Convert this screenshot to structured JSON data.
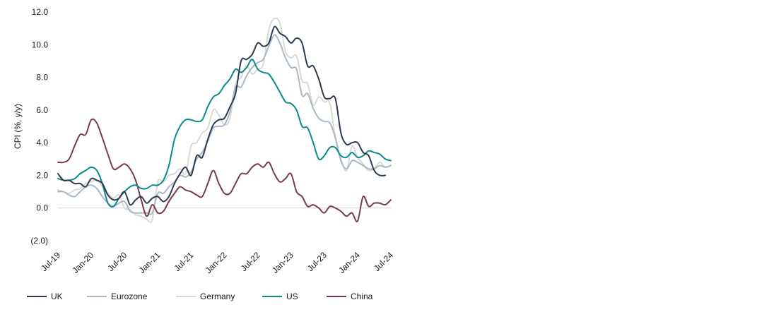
{
  "chart_data": {
    "type": "line",
    "title": "",
    "xlabel": "",
    "ylabel": "CPI (%, y/y)",
    "ylim": [
      -2.0,
      12.0
    ],
    "yticks": [
      "(2.0)",
      "0.0",
      "2.0",
      "4.0",
      "6.0",
      "8.0",
      "10.0",
      "12.0"
    ],
    "ytick_values": [
      -2,
      0,
      2,
      4,
      6,
      8,
      10,
      12
    ],
    "x_start": "Jul-19",
    "x": [
      "Jul-19",
      "Aug-19",
      "Sep-19",
      "Oct-19",
      "Nov-19",
      "Dec-19",
      "Jan-20",
      "Feb-20",
      "Mar-20",
      "Apr-20",
      "May-20",
      "Jun-20",
      "Jul-20",
      "Aug-20",
      "Sep-20",
      "Oct-20",
      "Nov-20",
      "Dec-20",
      "Jan-21",
      "Feb-21",
      "Mar-21",
      "Apr-21",
      "May-21",
      "Jun-21",
      "Jul-21",
      "Aug-21",
      "Sep-21",
      "Oct-21",
      "Nov-21",
      "Dec-21",
      "Jan-22",
      "Feb-22",
      "Mar-22",
      "Apr-22",
      "May-22",
      "Jun-22",
      "Jul-22",
      "Aug-22",
      "Sep-22",
      "Oct-22",
      "Nov-22",
      "Dec-22",
      "Jan-23",
      "Feb-23",
      "Mar-23",
      "Apr-23",
      "May-23",
      "Jun-23",
      "Jul-23",
      "Aug-23",
      "Sep-23",
      "Oct-23",
      "Nov-23",
      "Dec-23",
      "Jan-24",
      "Feb-24",
      "Mar-24",
      "Apr-24",
      "May-24",
      "Jun-24",
      "Jul-24"
    ],
    "xticks": [
      "Jul-19",
      "Jan-20",
      "Jul-20",
      "Jan-21",
      "Jul-21",
      "Jan-22",
      "Jul-22",
      "Jan-23",
      "Jul-23",
      "Jan-24",
      "Jul-24"
    ],
    "zero_line": true,
    "grid": false,
    "legend_position": "bottom",
    "series": [
      {
        "name": "UK",
        "color": "#2e3a4e",
        "values": [
          2.1,
          1.7,
          1.7,
          1.5,
          1.5,
          1.3,
          1.8,
          1.7,
          1.5,
          0.8,
          0.5,
          0.6,
          1.0,
          0.2,
          0.5,
          0.7,
          0.3,
          0.6,
          0.7,
          0.4,
          0.7,
          1.5,
          2.1,
          2.5,
          2.0,
          3.2,
          3.1,
          4.2,
          5.1,
          5.4,
          5.5,
          6.2,
          7.0,
          9.0,
          9.1,
          9.4,
          10.1,
          9.9,
          10.1,
          11.1,
          10.7,
          10.5,
          10.1,
          10.4,
          10.1,
          8.7,
          8.7,
          7.9,
          6.8,
          6.7,
          6.7,
          4.6,
          3.9,
          4.0,
          4.0,
          3.4,
          3.2,
          2.3,
          2.0,
          2.0,
          null
        ]
      },
      {
        "name": "Eurozone",
        "color": "#a9b8c4",
        "values": [
          1.0,
          1.0,
          0.8,
          0.7,
          1.0,
          1.3,
          1.4,
          1.2,
          0.7,
          0.3,
          0.1,
          0.3,
          0.4,
          -0.2,
          -0.3,
          -0.3,
          -0.3,
          -0.3,
          0.9,
          0.9,
          1.3,
          1.6,
          2.0,
          1.9,
          2.2,
          3.0,
          3.4,
          4.1,
          4.9,
          5.0,
          5.1,
          5.9,
          7.4,
          7.4,
          8.1,
          8.6,
          8.9,
          9.1,
          9.9,
          10.6,
          10.1,
          9.2,
          8.6,
          8.5,
          6.9,
          7.0,
          6.1,
          5.5,
          5.3,
          5.2,
          4.3,
          2.9,
          2.4,
          2.9,
          2.8,
          2.6,
          2.4,
          2.4,
          2.6,
          2.5,
          2.6
        ]
      },
      {
        "name": "Germany",
        "color": "#d9d9d4",
        "values": [
          1.1,
          1.0,
          0.9,
          1.1,
          1.2,
          1.5,
          1.6,
          1.7,
          1.3,
          0.9,
          0.6,
          0.8,
          -0.0,
          -0.1,
          -0.4,
          -0.5,
          -0.7,
          -0.7,
          1.6,
          1.6,
          2.0,
          2.1,
          2.4,
          2.1,
          3.8,
          4.0,
          4.6,
          4.9,
          6.0,
          5.7,
          5.1,
          5.5,
          7.6,
          8.0,
          8.7,
          8.2,
          8.5,
          8.8,
          10.9,
          11.6,
          11.3,
          9.6,
          9.2,
          9.3,
          7.8,
          7.6,
          6.3,
          6.8,
          6.5,
          6.4,
          4.3,
          3.0,
          2.3,
          3.8,
          3.1,
          2.7,
          2.3,
          2.4,
          2.8,
          2.5,
          2.6
        ]
      },
      {
        "name": "US",
        "color": "#0a8a8a",
        "values": [
          1.8,
          1.7,
          1.7,
          1.8,
          2.1,
          2.3,
          2.5,
          2.3,
          1.5,
          0.3,
          0.1,
          0.6,
          1.0,
          1.3,
          1.4,
          1.2,
          1.2,
          1.4,
          1.4,
          1.7,
          2.6,
          4.2,
          5.0,
          5.4,
          5.4,
          5.3,
          5.4,
          6.2,
          6.8,
          7.0,
          7.5,
          7.9,
          8.5,
          8.3,
          8.6,
          9.1,
          8.5,
          8.3,
          8.2,
          7.7,
          7.1,
          6.5,
          6.4,
          6.0,
          5.0,
          4.9,
          4.0,
          3.0,
          3.2,
          3.7,
          3.7,
          3.2,
          3.1,
          3.4,
          3.1,
          3.2,
          3.5,
          3.4,
          3.3,
          3.0,
          2.9
        ]
      },
      {
        "name": "China",
        "color": "#7b3a4a",
        "values": [
          2.8,
          2.8,
          3.0,
          3.8,
          4.5,
          4.5,
          5.4,
          5.2,
          4.3,
          3.3,
          2.4,
          2.5,
          2.7,
          2.4,
          1.7,
          0.5,
          -0.5,
          0.2,
          -0.3,
          -0.2,
          0.4,
          0.9,
          1.3,
          1.1,
          1.0,
          0.8,
          0.7,
          1.5,
          2.3,
          1.5,
          0.9,
          0.9,
          1.5,
          2.1,
          2.1,
          2.5,
          2.7,
          2.5,
          2.8,
          2.1,
          1.6,
          1.8,
          2.1,
          1.0,
          0.7,
          0.1,
          0.2,
          0.0,
          -0.3,
          0.1,
          0.0,
          -0.2,
          -0.5,
          -0.3,
          -0.8,
          0.7,
          0.1,
          0.3,
          0.3,
          0.2,
          0.5
        ]
      }
    ]
  }
}
